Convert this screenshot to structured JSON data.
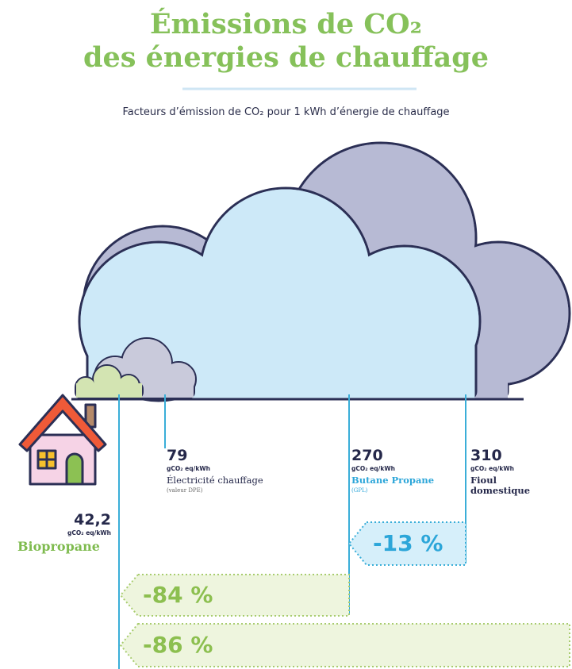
{
  "header": {
    "title_line1": "Émissions de CO₂",
    "title_line2": "des énergies de chauffage",
    "subtitle": "Facteurs d’émission de CO₂ pour 1 kWh d’énergie de chauffage"
  },
  "items": [
    {
      "value": "42,2",
      "unit": "gCO₂ eq/kWh",
      "label": "Biopropane"
    },
    {
      "value": "79",
      "unit": "gCO₂ eq/kWh",
      "label": "Électricité chauffage",
      "note": "(valeur DPE)"
    },
    {
      "value": "270",
      "unit": "gCO₂ eq/kWh",
      "label": "Butane Propane",
      "note": "(GPL)"
    },
    {
      "value": "310",
      "unit": "gCO₂ eq/kWh",
      "label": "Fioul domestique"
    }
  ],
  "comparisons": [
    {
      "label": "-13 %"
    },
    {
      "label": "-84 %"
    },
    {
      "label": "-86 %"
    }
  ]
}
